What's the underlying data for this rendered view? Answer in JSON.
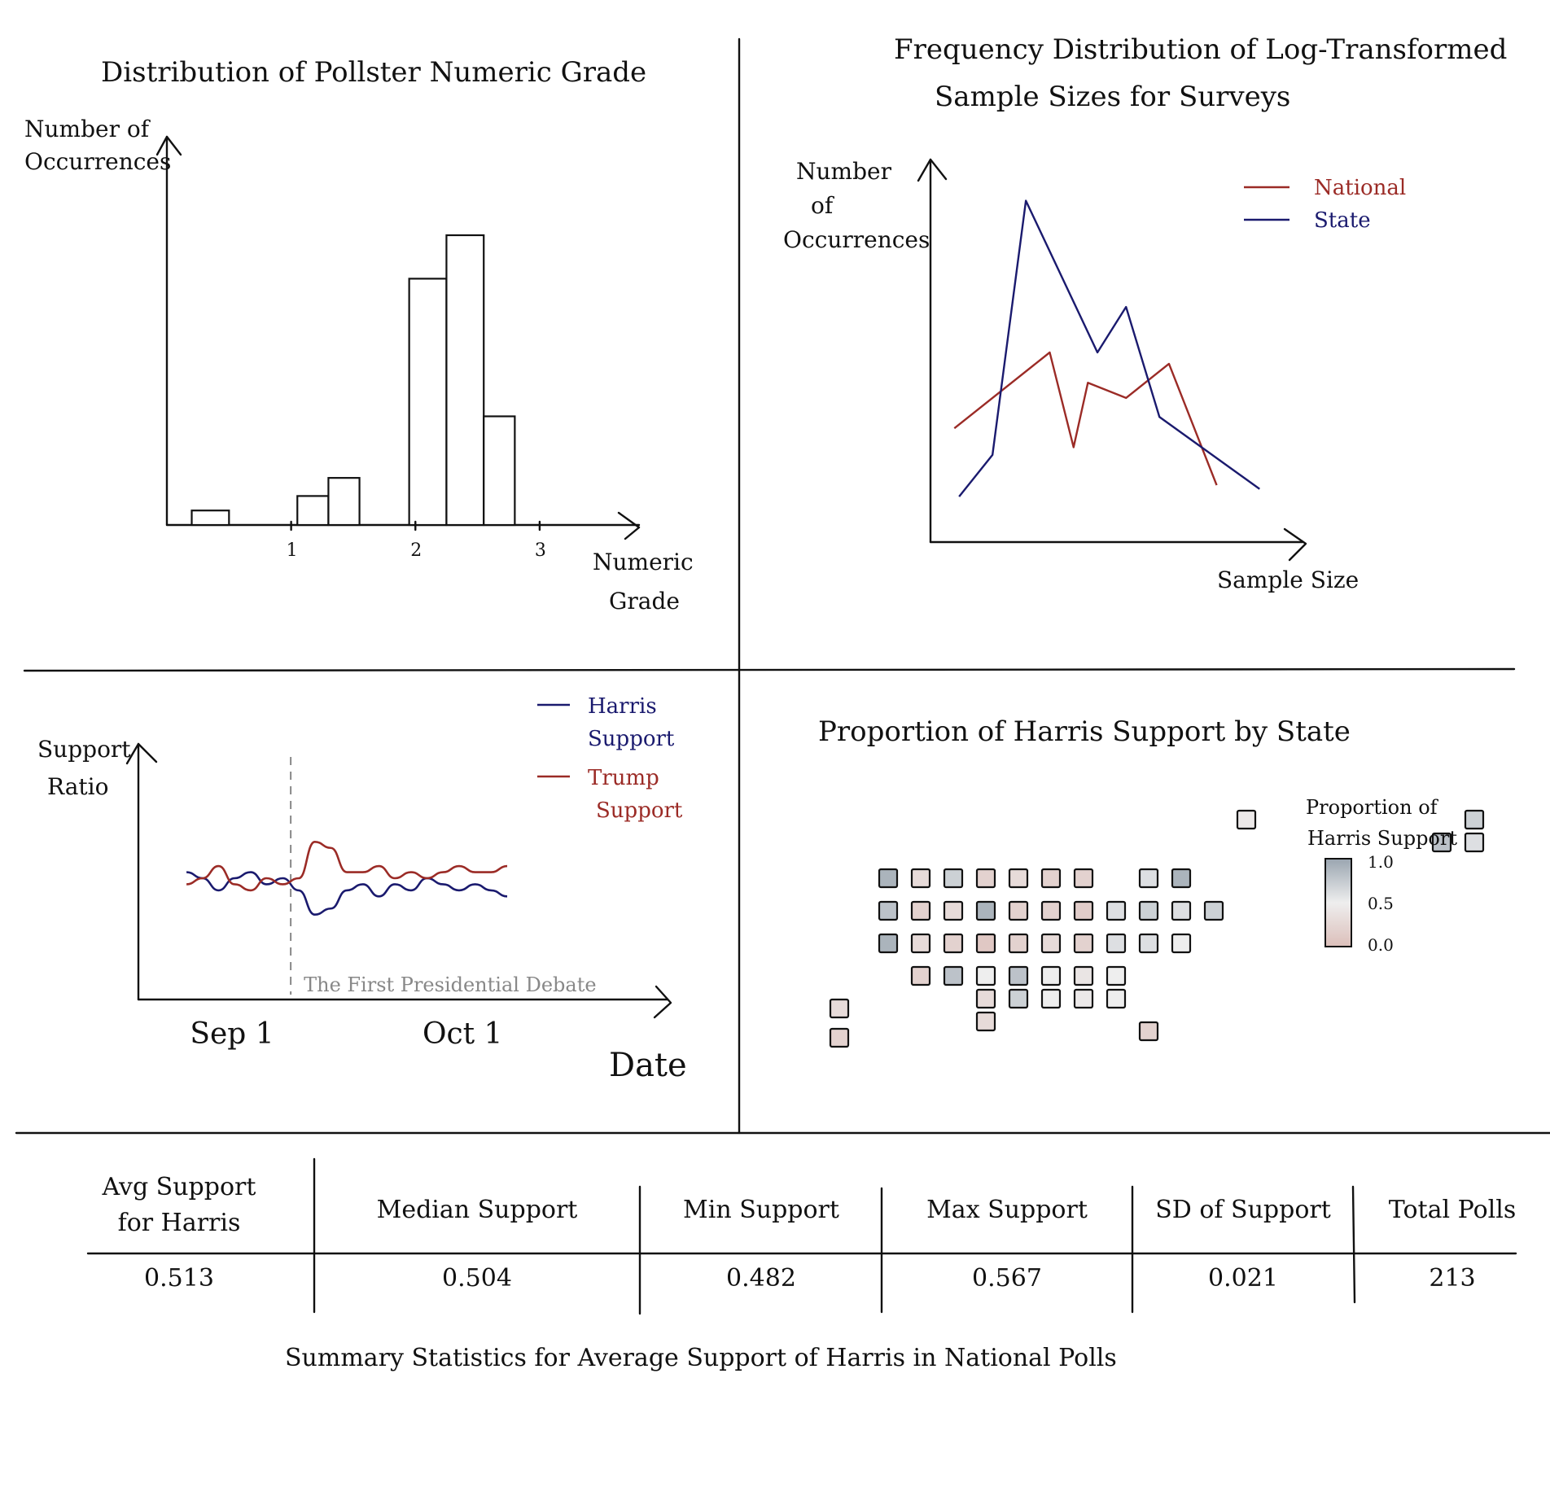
{
  "chart_data": [
    {
      "id": "histogram",
      "type": "bar",
      "title": "Distribution of Pollster Numeric Grade",
      "xlabel": "Numeric Grade",
      "ylabel": "Number of Occurrences",
      "x_ticks": [
        "1",
        "2",
        "3"
      ],
      "xlim": [
        0,
        3.8
      ],
      "ylim": [
        0,
        10
      ],
      "bins": [
        {
          "x0": 0.2,
          "x1": 0.5,
          "value": 0.4
        },
        {
          "x0": 1.05,
          "x1": 1.3,
          "value": 0.8
        },
        {
          "x0": 1.3,
          "x1": 1.55,
          "value": 1.3
        },
        {
          "x0": 1.95,
          "x1": 2.25,
          "value": 6.8
        },
        {
          "x0": 2.25,
          "x1": 2.55,
          "value": 8.0
        },
        {
          "x0": 2.55,
          "x1": 2.8,
          "value": 3.0
        }
      ]
    },
    {
      "id": "line_sample",
      "type": "line",
      "title": "Frequency Distribution of Log-Transformed Sample Sizes for Surveys",
      "xlabel": "Sample Size",
      "ylabel": "Number of Occurrences",
      "series": [
        {
          "name": "National",
          "color": "#9b2b26",
          "x": [
            0.5,
            2.5,
            3.0,
            3.3,
            4.1,
            5.0,
            6.0
          ],
          "y": [
            3.0,
            5.0,
            2.5,
            4.2,
            3.8,
            4.7,
            1.5
          ]
        },
        {
          "name": "State",
          "color": "#1a1a6e",
          "x": [
            0.6,
            1.3,
            2.0,
            3.5,
            4.1,
            4.8,
            6.9
          ],
          "y": [
            1.2,
            2.3,
            9.0,
            5.0,
            6.2,
            3.3,
            1.4
          ]
        }
      ],
      "xlim": [
        0,
        7.8
      ],
      "ylim": [
        0,
        10
      ]
    },
    {
      "id": "support_ratio",
      "type": "line",
      "xlabel": "Date",
      "ylabel": "Support Ratio",
      "x_ticks": [
        "Sep 1",
        "Oct 1"
      ],
      "annotation": "The First Presidential Debate",
      "series": [
        {
          "name": "Harris\nSupport",
          "color": "#1a1a6e",
          "x": [
            0,
            1,
            2,
            3,
            4,
            5,
            6,
            7,
            8,
            9,
            10,
            11,
            12,
            13,
            14,
            15,
            16,
            17,
            18,
            19,
            20
          ],
          "y": [
            0.51,
            0.5,
            0.48,
            0.5,
            0.51,
            0.49,
            0.5,
            0.48,
            0.44,
            0.45,
            0.48,
            0.49,
            0.47,
            0.49,
            0.48,
            0.5,
            0.49,
            0.48,
            0.49,
            0.48,
            0.47
          ]
        },
        {
          "name": "Trump\nSupport",
          "color": "#9b2b26",
          "x": [
            0,
            1,
            2,
            3,
            4,
            5,
            6,
            7,
            8,
            9,
            10,
            11,
            12,
            13,
            14,
            15,
            16,
            17,
            18,
            19,
            20
          ],
          "y": [
            0.49,
            0.5,
            0.52,
            0.49,
            0.48,
            0.5,
            0.49,
            0.5,
            0.56,
            0.55,
            0.51,
            0.51,
            0.52,
            0.5,
            0.51,
            0.5,
            0.51,
            0.52,
            0.51,
            0.51,
            0.52
          ]
        }
      ],
      "ylim": [
        0.3,
        0.7
      ],
      "xlim": [
        -3,
        30
      ],
      "event_x": 6.5,
      "x_tick_positions": [
        2.5,
        17.0
      ]
    },
    {
      "id": "state_map",
      "type": "heatmap",
      "title": "Proportion of Harris Support by State",
      "legend_title": "Proportion of Harris Support",
      "legend_ticks": [
        "1.0",
        "0.5",
        "0.0"
      ],
      "color_scale": [
        "#dcbfba",
        "#eeeeee",
        "#9aa5b0"
      ],
      "tiles": [
        {
          "row": 0,
          "col": 11,
          "value": 0.45
        },
        {
          "row": 0,
          "col": 18,
          "value": 0.7
        },
        {
          "row": 0.7,
          "col": 17,
          "value": 0.8
        },
        {
          "row": 0.7,
          "col": 18,
          "value": 0.6
        },
        {
          "row": 1.8,
          "col": 0,
          "value": 0.9
        },
        {
          "row": 1.8,
          "col": 1,
          "value": 0.3
        },
        {
          "row": 1.8,
          "col": 2,
          "value": 0.7
        },
        {
          "row": 1.8,
          "col": 3,
          "value": 0.2
        },
        {
          "row": 1.8,
          "col": 4,
          "value": 0.3
        },
        {
          "row": 1.8,
          "col": 5,
          "value": 0.2
        },
        {
          "row": 1.8,
          "col": 6,
          "value": 0.2
        },
        {
          "row": 1.8,
          "col": 8,
          "value": 0.6
        },
        {
          "row": 1.8,
          "col": 9,
          "value": 0.9
        },
        {
          "row": 2.8,
          "col": 0,
          "value": 0.8
        },
        {
          "row": 2.8,
          "col": 1,
          "value": 0.2
        },
        {
          "row": 2.8,
          "col": 2,
          "value": 0.3
        },
        {
          "row": 2.8,
          "col": 3,
          "value": 0.9
        },
        {
          "row": 2.8,
          "col": 4,
          "value": 0.2
        },
        {
          "row": 2.8,
          "col": 5,
          "value": 0.2
        },
        {
          "row": 2.8,
          "col": 6,
          "value": 0.15
        },
        {
          "row": 2.8,
          "col": 7,
          "value": 0.6
        },
        {
          "row": 2.8,
          "col": 8,
          "value": 0.7
        },
        {
          "row": 2.8,
          "col": 9,
          "value": 0.6
        },
        {
          "row": 2.8,
          "col": 10,
          "value": 0.7
        },
        {
          "row": 3.8,
          "col": 0,
          "value": 0.9
        },
        {
          "row": 3.8,
          "col": 1,
          "value": 0.3
        },
        {
          "row": 3.8,
          "col": 2,
          "value": 0.2
        },
        {
          "row": 3.8,
          "col": 3,
          "value": 0.1
        },
        {
          "row": 3.8,
          "col": 4,
          "value": 0.2
        },
        {
          "row": 3.8,
          "col": 5,
          "value": 0.3
        },
        {
          "row": 3.8,
          "col": 6,
          "value": 0.2
        },
        {
          "row": 3.8,
          "col": 7,
          "value": 0.6
        },
        {
          "row": 3.8,
          "col": 8,
          "value": 0.6
        },
        {
          "row": 3.8,
          "col": 9,
          "value": 0.5
        },
        {
          "row": 4.8,
          "col": 1,
          "value": 0.2
        },
        {
          "row": 4.8,
          "col": 2,
          "value": 0.8
        },
        {
          "row": 4.8,
          "col": 3,
          "value": 0.5
        },
        {
          "row": 4.8,
          "col": 4,
          "value": 0.8
        },
        {
          "row": 4.8,
          "col": 5,
          "value": 0.5
        },
        {
          "row": 4.8,
          "col": 6,
          "value": 0.4
        },
        {
          "row": 4.8,
          "col": 7,
          "value": 0.5
        },
        {
          "row": 5.5,
          "col": 3,
          "value": 0.3
        },
        {
          "row": 5.5,
          "col": 4,
          "value": 0.7
        },
        {
          "row": 5.5,
          "col": 5,
          "value": 0.5
        },
        {
          "row": 5.5,
          "col": 6,
          "value": 0.45
        },
        {
          "row": 5.5,
          "col": 7,
          "value": 0.5
        },
        {
          "row": 6.2,
          "col": 3,
          "value": 0.3
        },
        {
          "row": 6.5,
          "col": 8,
          "value": 0.2
        },
        {
          "row": 5.8,
          "col": -1.5,
          "value": 0.3
        },
        {
          "row": 6.7,
          "col": -1.5,
          "value": 0.2
        }
      ]
    },
    {
      "id": "summary_table",
      "type": "table",
      "title": "Summary Statistics for Average Support of Harris in National Polls",
      "columns": [
        "Avg Support\nfor Harris",
        "Median Support",
        "Min Support",
        "Max Support",
        "SD of Support",
        "Total Polls"
      ],
      "rows": [
        [
          "0.513",
          "0.504",
          "0.482",
          "0.567",
          "0.021",
          "213"
        ]
      ]
    }
  ]
}
